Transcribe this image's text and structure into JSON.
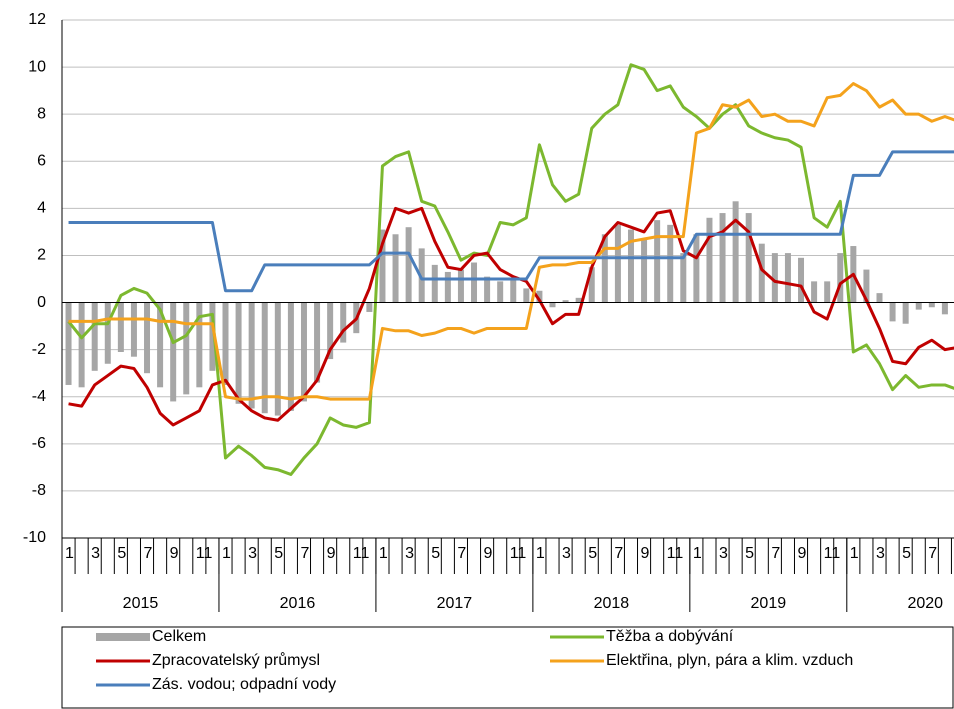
{
  "chart_data": {
    "type": "combo",
    "categories": [
      "1",
      null,
      "3",
      null,
      "5",
      null,
      "7",
      null,
      "9",
      null,
      "11",
      null,
      "1",
      null,
      "3",
      null,
      "5",
      null,
      "7",
      null,
      "9",
      null,
      "11",
      null,
      "1",
      null,
      "3",
      null,
      "5",
      null,
      "7",
      null,
      "9",
      null,
      "11",
      null,
      "1",
      null,
      "3",
      null,
      "5",
      null,
      "7",
      null,
      "9",
      null,
      "11",
      null,
      "1",
      null,
      "3",
      null,
      "5",
      null,
      "7",
      null,
      "9",
      null,
      "11",
      null,
      "1",
      null,
      "3",
      null,
      "5",
      null,
      "7",
      null,
      "9"
    ],
    "years": [
      "2015",
      "2016",
      "2017",
      "2018",
      "2019",
      "2020"
    ],
    "ylim": [
      -10,
      12
    ],
    "yticks": [
      -10,
      -8,
      -6,
      -4,
      -2,
      0,
      2,
      4,
      6,
      8,
      10,
      12
    ],
    "grid": true,
    "series": [
      {
        "name": "Celkem",
        "type": "bar",
        "color": "#a6a6a6",
        "values": [
          -3.5,
          -3.6,
          -2.9,
          -2.6,
          -2.1,
          -2.3,
          -3.0,
          -3.6,
          -4.2,
          -3.9,
          -3.6,
          -2.9,
          -3.5,
          -4.3,
          -4.5,
          -4.7,
          -4.8,
          -4.6,
          -4.2,
          -3.4,
          -2.4,
          -1.7,
          -1.3,
          -0.4,
          3.1,
          2.9,
          3.2,
          2.3,
          1.6,
          1.3,
          1.4,
          1.7,
          1.1,
          0.9,
          1.0,
          0.6,
          0.5,
          -0.2,
          0.1,
          0.2,
          1.5,
          2.9,
          3.3,
          3.1,
          2.7,
          3.5,
          3.3,
          2.1,
          2.9,
          3.6,
          3.8,
          4.3,
          3.8,
          2.5,
          2.1,
          2.1,
          1.9,
          0.9,
          0.9,
          2.1,
          2.4,
          1.4,
          0.4,
          -0.8,
          -0.9,
          -0.3,
          -0.2,
          -0.5,
          -0.3
        ]
      },
      {
        "name": "Těžba a dobývání",
        "type": "line",
        "color": "#7cb82f",
        "values": [
          -0.8,
          -1.5,
          -0.9,
          -0.9,
          0.3,
          0.6,
          0.4,
          -0.3,
          -1.7,
          -1.4,
          -0.6,
          -0.5,
          -6.6,
          -6.1,
          -6.5,
          -7.0,
          -7.1,
          -7.3,
          -6.6,
          -6.0,
          -4.9,
          -5.2,
          -5.3,
          -5.1,
          5.8,
          6.2,
          6.4,
          4.3,
          4.1,
          3.0,
          1.8,
          2.1,
          2.0,
          3.4,
          3.3,
          3.6,
          6.7,
          5.0,
          4.3,
          4.6,
          7.4,
          8.0,
          8.4,
          10.1,
          9.9,
          9.0,
          9.2,
          8.3,
          7.9,
          7.4,
          8.0,
          8.4,
          7.5,
          7.2,
          7.0,
          6.9,
          6.6,
          3.6,
          3.2,
          4.3,
          -2.1,
          -1.8,
          -2.6,
          -3.7,
          -3.1,
          -3.6,
          -3.5,
          -3.5,
          -3.7
        ]
      },
      {
        "name": "Zpracovatelský průmysl",
        "type": "line",
        "color": "#c00000",
        "values": [
          -4.3,
          -4.4,
          -3.5,
          -3.1,
          -2.7,
          -2.8,
          -3.6,
          -4.7,
          -5.2,
          -4.9,
          -4.6,
          -3.5,
          -3.3,
          -4.1,
          -4.6,
          -4.9,
          -5.0,
          -4.5,
          -4.0,
          -3.3,
          -2.0,
          -1.2,
          -0.7,
          0.6,
          2.5,
          4.0,
          3.8,
          4.0,
          2.6,
          1.5,
          1.4,
          2.0,
          2.1,
          1.4,
          1.1,
          0.9,
          0.1,
          -0.9,
          -0.5,
          -0.5,
          1.5,
          2.8,
          3.4,
          3.2,
          3.0,
          3.8,
          3.9,
          2.2,
          1.9,
          2.8,
          3.0,
          3.5,
          3.0,
          1.4,
          0.9,
          0.8,
          0.7,
          -0.4,
          -0.7,
          0.8,
          1.2,
          0.1,
          -1.1,
          -2.5,
          -2.6,
          -1.9,
          -1.6,
          -2.0,
          -1.9
        ]
      },
      {
        "name": "Elektřina, plyn, pára a klim. vzduch",
        "type": "line",
        "color": "#f4a21c",
        "values": [
          -0.8,
          -0.8,
          -0.8,
          -0.7,
          -0.7,
          -0.7,
          -0.7,
          -0.8,
          -0.8,
          -0.9,
          -0.9,
          -0.9,
          -4.0,
          -4.1,
          -4.1,
          -4.0,
          -4.0,
          -4.1,
          -4.0,
          -4.0,
          -4.1,
          -4.1,
          -4.1,
          -4.1,
          -1.1,
          -1.2,
          -1.2,
          -1.4,
          -1.3,
          -1.1,
          -1.1,
          -1.3,
          -1.1,
          -1.1,
          -1.1,
          -1.1,
          1.5,
          1.6,
          1.6,
          1.7,
          1.7,
          2.3,
          2.3,
          2.6,
          2.7,
          2.8,
          2.8,
          2.8,
          7.2,
          7.4,
          8.4,
          8.3,
          8.6,
          7.9,
          8.0,
          7.7,
          7.7,
          7.5,
          8.7,
          8.8,
          9.3,
          9.0,
          8.3,
          8.6,
          8.0,
          8.0,
          7.7,
          7.9,
          7.7
        ]
      },
      {
        "name": "Zás. vodou; odpadní vody",
        "type": "line",
        "color": "#4a7ebb",
        "values": [
          3.4,
          3.4,
          3.4,
          3.4,
          3.4,
          3.4,
          3.4,
          3.4,
          3.4,
          3.4,
          3.4,
          3.4,
          0.5,
          0.5,
          0.5,
          1.6,
          1.6,
          1.6,
          1.6,
          1.6,
          1.6,
          1.6,
          1.6,
          1.6,
          2.1,
          2.1,
          2.1,
          1.0,
          1.0,
          1.0,
          1.0,
          1.0,
          1.0,
          1.0,
          1.0,
          1.0,
          1.9,
          1.9,
          1.9,
          1.9,
          1.9,
          1.9,
          1.9,
          1.9,
          1.9,
          1.9,
          1.9,
          1.9,
          2.9,
          2.9,
          2.9,
          2.9,
          2.9,
          2.9,
          2.9,
          2.9,
          2.9,
          2.9,
          2.9,
          2.9,
          5.4,
          5.4,
          5.4,
          6.4,
          6.4,
          6.4,
          6.4,
          6.4,
          6.4
        ]
      }
    ]
  }
}
